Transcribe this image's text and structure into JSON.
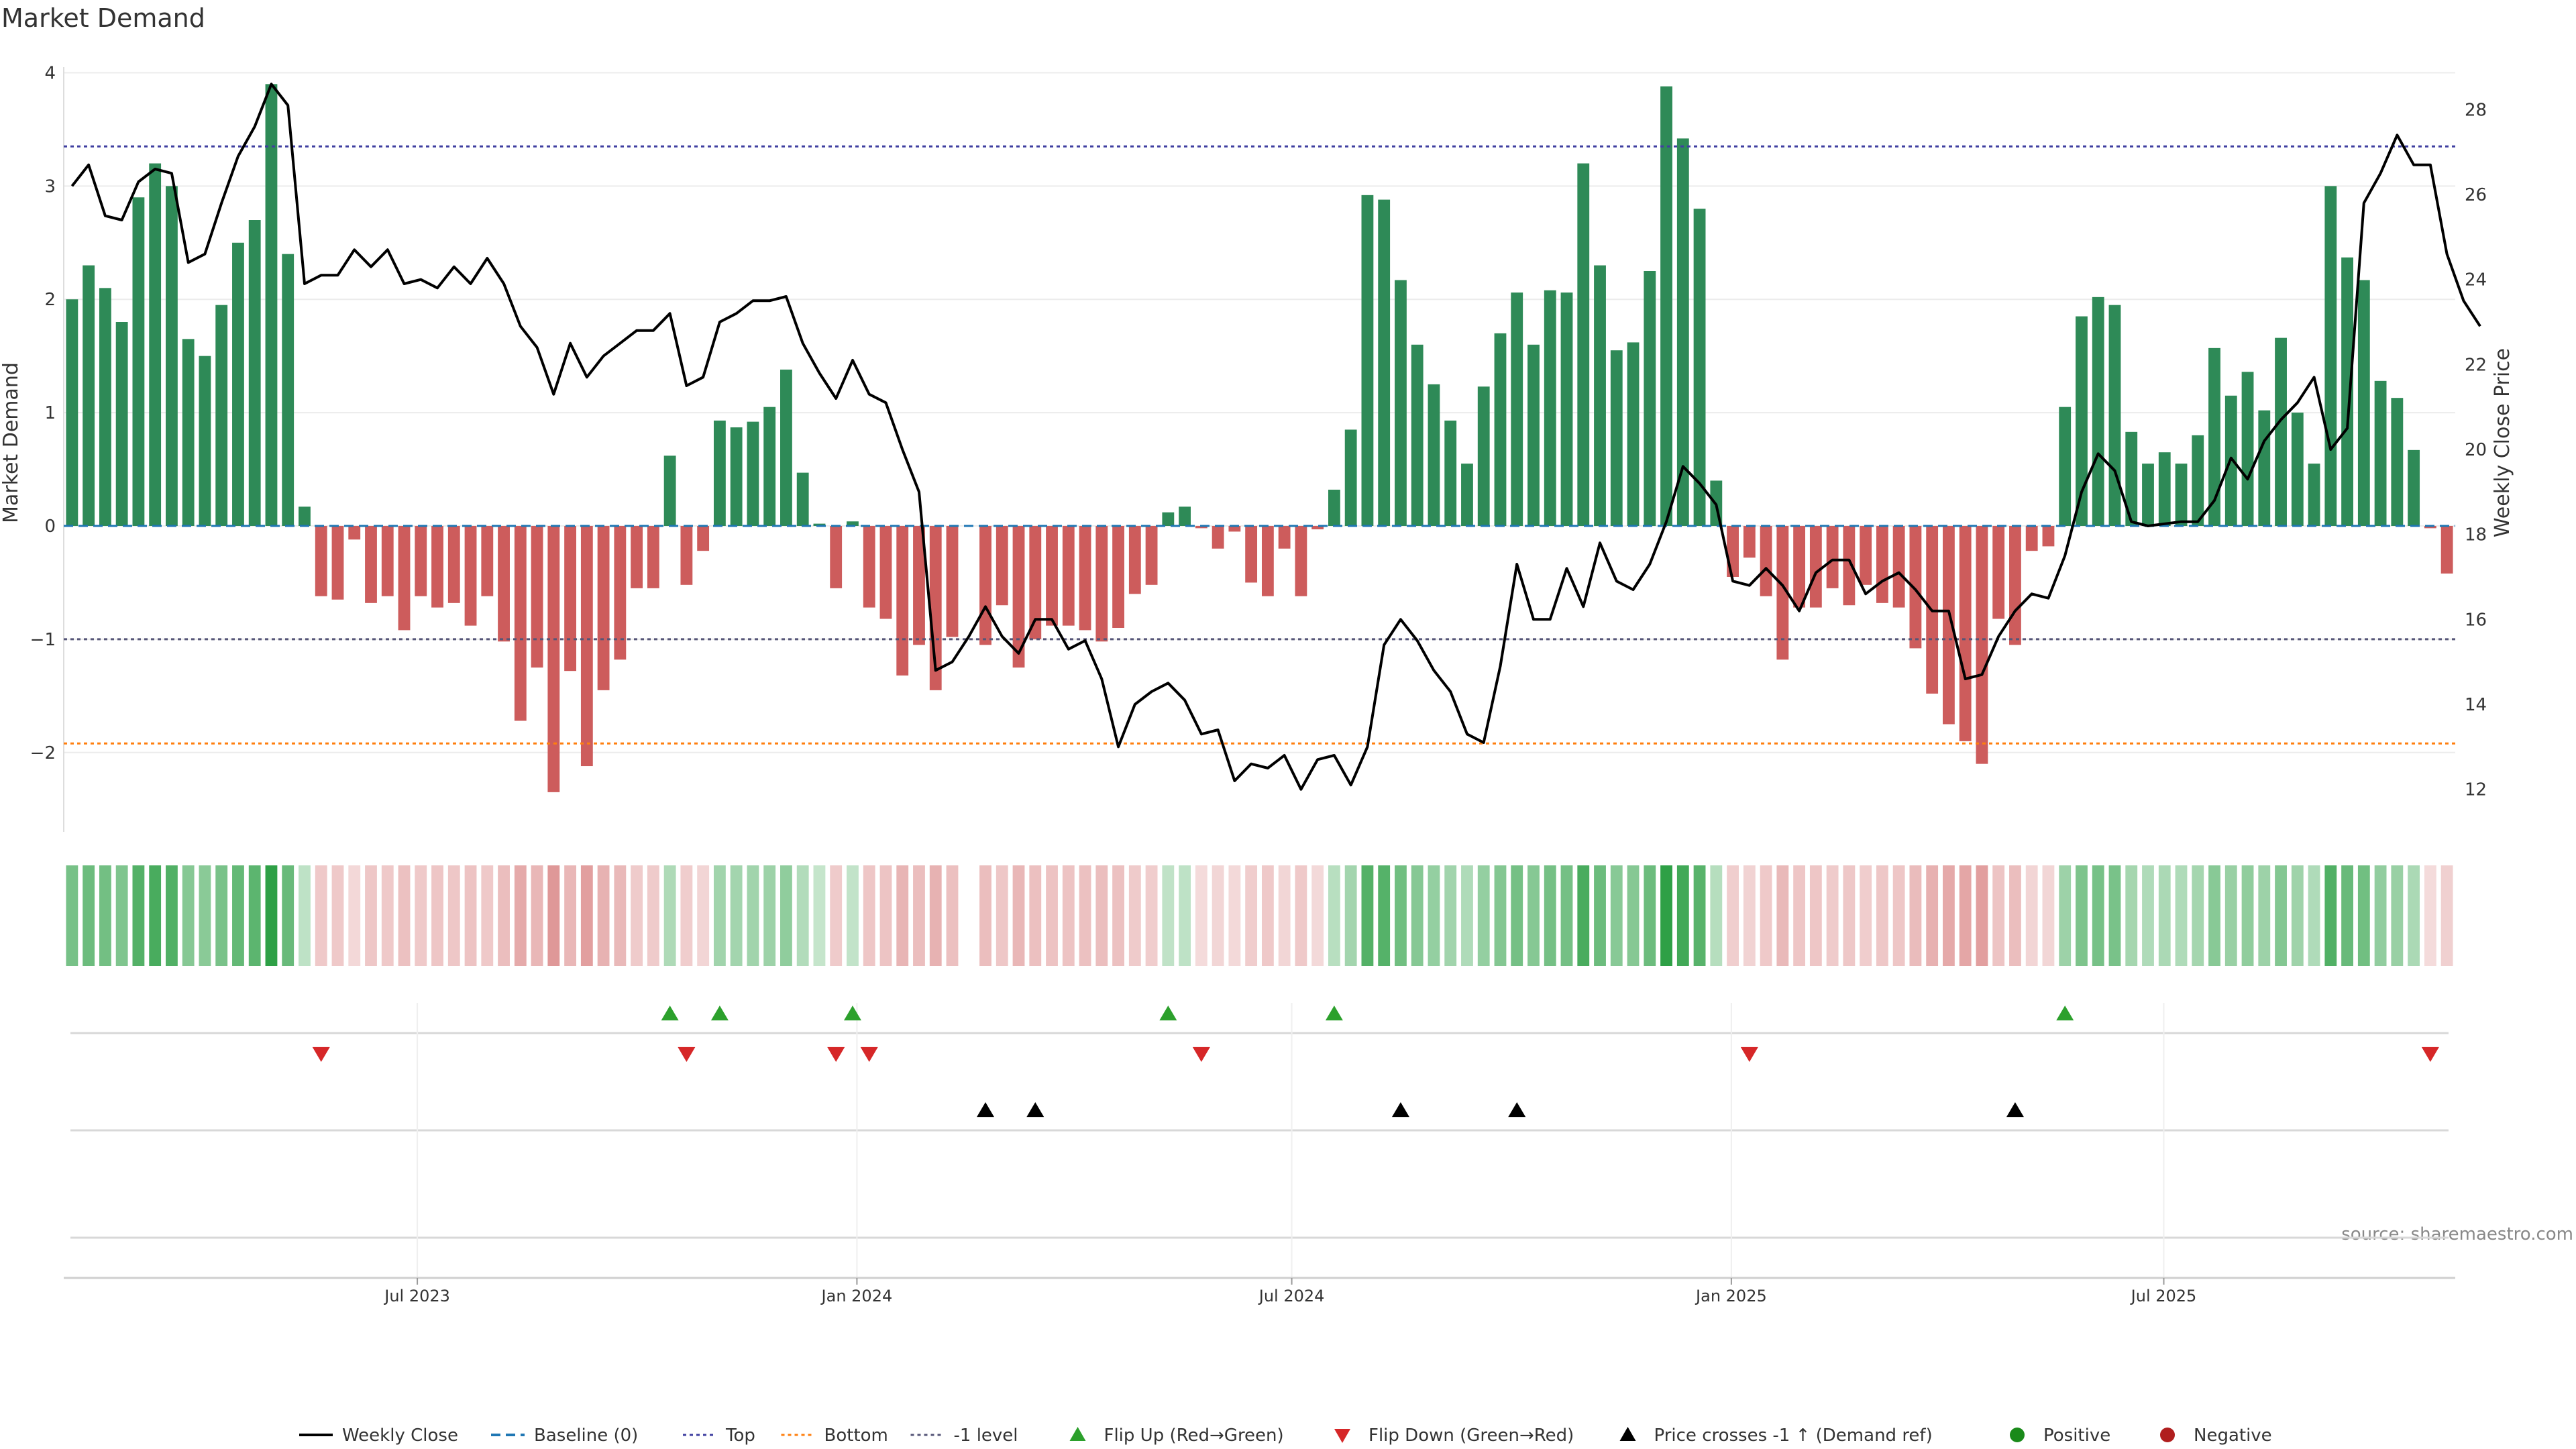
{
  "chart_data": {
    "type": "bar",
    "title": "Market Demand",
    "ylabel_left": "Market Demand",
    "ylabel_right": "Weekly Close Price",
    "source": "source: sharemaestro.com",
    "ylim_left": [
      -2.7,
      4.05
    ],
    "ylim_right": [
      11.0,
      29.0
    ],
    "left_ticks": [
      4,
      3,
      2,
      1,
      0,
      -1,
      -2
    ],
    "left_tick_labels": [
      "4",
      "3",
      "2",
      "1",
      "0",
      "−1",
      "−2"
    ],
    "right_ticks": [
      28,
      26,
      24,
      22,
      20,
      18,
      16,
      14,
      12
    ],
    "x_start": "2023-02-03",
    "x_end": "2025-10-31",
    "x_ticks": [
      {
        "date": "2023-07-01",
        "label": "Jul 2023"
      },
      {
        "date": "2024-01-01",
        "label": "Jan 2024"
      },
      {
        "date": "2024-07-01",
        "label": "Jul 2024"
      },
      {
        "date": "2025-01-01",
        "label": "Jan 2025"
      },
      {
        "date": "2025-07-01",
        "label": "Jul 2025"
      }
    ],
    "reference_lines": {
      "baseline": 0,
      "top": 3.35,
      "bottom": -1.92,
      "minus_one": -1.0
    },
    "series": [
      {
        "name": "Market Demand",
        "values": [
          2.0,
          2.3,
          2.1,
          1.8,
          2.9,
          3.2,
          3.0,
          1.65,
          1.5,
          1.95,
          2.5,
          2.7,
          3.9,
          2.4,
          0.17,
          -0.62,
          -0.65,
          -0.12,
          -0.68,
          -0.62,
          -0.92,
          -0.62,
          -0.72,
          -0.68,
          -0.88,
          -0.62,
          -1.02,
          -1.72,
          -1.25,
          -2.35,
          -1.28,
          -2.12,
          -1.45,
          -1.18,
          -0.55,
          -0.55,
          0.62,
          -0.52,
          -0.22,
          0.93,
          0.87,
          0.92,
          1.05,
          1.38,
          0.47,
          0.02,
          -0.55,
          0.04,
          -0.72,
          -0.82,
          -1.32,
          -1.05,
          -1.45,
          -0.98,
          null,
          -1.05,
          -0.7,
          -1.25,
          -1.0,
          -0.88,
          -0.88,
          -0.92,
          -1.02,
          -0.9,
          -0.6,
          -0.52,
          0.12,
          0.17,
          -0.02,
          -0.2,
          -0.05,
          -0.5,
          -0.62,
          -0.2,
          -0.62,
          -0.03,
          0.32,
          0.85,
          2.92,
          2.88,
          2.17,
          1.6,
          1.25,
          0.93,
          0.55,
          1.23,
          1.7,
          2.06,
          1.6,
          2.08,
          2.06,
          3.2,
          2.3,
          1.55,
          1.62,
          2.25,
          3.88,
          3.42,
          2.8,
          0.4,
          -0.45,
          -0.28,
          -0.62,
          -1.18,
          -0.72,
          -0.72,
          -0.55,
          -0.7,
          -0.52,
          -0.68,
          -0.72,
          -1.08,
          -1.48,
          -1.75,
          -1.9,
          -2.1,
          -0.82,
          -1.05,
          -0.22,
          -0.18,
          1.05,
          1.85,
          2.02,
          1.95,
          0.83,
          0.55,
          0.65,
          0.55,
          0.8,
          1.57,
          1.15,
          1.36,
          1.02,
          1.66,
          1.0,
          0.55,
          3.0,
          2.37,
          2.17,
          1.28,
          1.13,
          0.67,
          -0.02,
          -0.42
        ]
      },
      {
        "name": "Weekly Close",
        "values": [
          26.2,
          26.7,
          25.5,
          25.4,
          26.3,
          26.6,
          26.5,
          24.4,
          24.6,
          25.8,
          26.9,
          27.6,
          28.6,
          28.1,
          23.9,
          24.1,
          24.1,
          24.7,
          24.3,
          24.7,
          23.9,
          24.0,
          23.8,
          24.3,
          23.9,
          24.5,
          23.9,
          22.9,
          22.4,
          21.3,
          22.5,
          21.7,
          22.2,
          22.5,
          22.8,
          22.8,
          23.2,
          21.5,
          21.7,
          23.0,
          23.2,
          23.5,
          23.5,
          23.6,
          22.5,
          21.8,
          21.2,
          22.1,
          21.3,
          21.1,
          20.0,
          19.0,
          14.8,
          15.0,
          15.6,
          16.3,
          15.6,
          15.2,
          16.0,
          16.0,
          15.3,
          15.5,
          14.6,
          13.0,
          14.0,
          14.3,
          14.5,
          14.1,
          13.3,
          13.4,
          12.2,
          12.6,
          12.5,
          12.8,
          12.0,
          12.7,
          12.8,
          12.1,
          13.0,
          15.4,
          16.0,
          15.5,
          14.8,
          14.3,
          13.3,
          13.1,
          14.9,
          17.3,
          16.0,
          16.0,
          17.2,
          16.3,
          17.8,
          16.9,
          16.7,
          17.3,
          18.3,
          19.6,
          19.2,
          18.7,
          16.9,
          16.8,
          17.2,
          16.8,
          16.2,
          17.1,
          17.4,
          17.4,
          16.6,
          16.9,
          17.1,
          16.7,
          16.2,
          16.2,
          14.6,
          14.7,
          15.6,
          16.2,
          16.6,
          16.5,
          17.5,
          19.0,
          19.9,
          19.5,
          18.3,
          18.2,
          18.25,
          18.3,
          18.3,
          18.8,
          19.8,
          19.3,
          20.2,
          20.7,
          21.1,
          21.7,
          20.0,
          20.5,
          25.8,
          26.5,
          27.4,
          26.7,
          26.7,
          24.6,
          23.5,
          22.9
        ]
      }
    ],
    "flip_up_indices": [
      36,
      39,
      47,
      66,
      76,
      120
    ],
    "flip_down_indices": [
      15,
      37,
      46,
      48,
      68,
      101,
      142
    ],
    "price_cross_indices": [
      55,
      58,
      80,
      87,
      117
    ],
    "legend": {
      "placement": "bottom",
      "items": [
        {
          "label": "Weekly Close",
          "kind": "line",
          "color": "#000000"
        },
        {
          "label": "Baseline (0)",
          "kind": "dash",
          "color": "#1f77b4"
        },
        {
          "label": "Top",
          "kind": "dot",
          "color": "#3f3fa0"
        },
        {
          "label": "Bottom",
          "kind": "dot",
          "color": "#ff7f0e"
        },
        {
          "label": "-1 level",
          "kind": "dot",
          "color": "#555577"
        },
        {
          "label": "Flip Up (Red→Green)",
          "kind": "tri-up",
          "color": "#2ca02c"
        },
        {
          "label": "Flip Down (Green→Red)",
          "kind": "tri-down",
          "color": "#d62728"
        },
        {
          "label": "Price crosses -1 ↑ (Demand ref)",
          "kind": "tri-up",
          "color": "#000000"
        },
        {
          "label": "Positive",
          "kind": "circle",
          "color": "#1a8a1a"
        },
        {
          "label": "Negative",
          "kind": "circle",
          "color": "#b01e1e"
        }
      ]
    },
    "colors": {
      "positive_bar": "#2e8a57",
      "negative_bar": "#cd5c5c",
      "price_line": "#000000",
      "top_line": "#3f3fa0",
      "bottom_line": "#ff7f0e",
      "minus_one_line": "#555577",
      "baseline": "#1f77b4"
    }
  }
}
